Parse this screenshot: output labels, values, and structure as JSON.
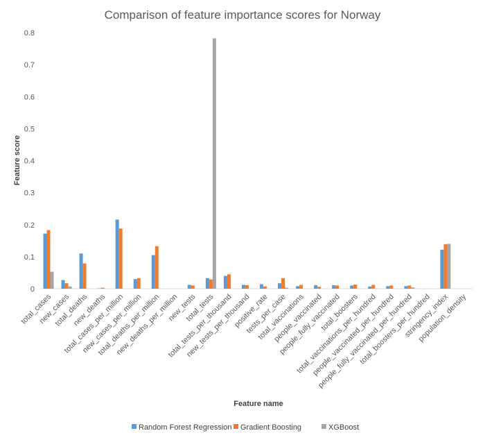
{
  "chart_data": {
    "type": "bar",
    "title": "Comparison of feature importance scores for Norway",
    "xlabel": "Feature name",
    "ylabel": "Feature score",
    "ylim": [
      0,
      0.8
    ],
    "yticks": [
      "0",
      "0.1",
      "0.2",
      "0.3",
      "0.4",
      "0.5",
      "0.6",
      "0.7",
      "0.8"
    ],
    "grid": false,
    "legend_position": "bottom",
    "categories": [
      "total_cases",
      "new_cases",
      "total_deaths",
      "new_deaths",
      "total_cases_per_million",
      "new_cases_per_million",
      "total_deaths_per_million",
      "new_deaths_per_million",
      "new_tests",
      "total_tests",
      "total_tests_per_thousand",
      "new_tests_per_thousand",
      "positive_rate",
      "tests_per_case",
      "total_vaccinations",
      "people_vaccinated",
      "people_fully_vaccinated",
      "total_boosters",
      "total_vaccinations_per_hundred",
      "people_vaccinated_per_hundred",
      "people_fully_vaccinated_per_hundred",
      "total_boosters_per_hundred",
      "stringency_index",
      "population_density"
    ],
    "series": [
      {
        "name": "Random Forest Regression",
        "color": "#5B9BD5",
        "values": [
          0.172,
          0.027,
          0.11,
          0.001,
          0.216,
          0.03,
          0.105,
          0.0,
          0.012,
          0.033,
          0.04,
          0.012,
          0.014,
          0.017,
          0.008,
          0.011,
          0.011,
          0.01,
          0.007,
          0.008,
          0.008,
          0.0,
          0.122,
          0.0
        ]
      },
      {
        "name": "Gradient Boosting",
        "color": "#ED7D31",
        "values": [
          0.183,
          0.017,
          0.079,
          0.003,
          0.188,
          0.033,
          0.133,
          0.0,
          0.01,
          0.029,
          0.045,
          0.011,
          0.007,
          0.033,
          0.012,
          0.006,
          0.01,
          0.013,
          0.012,
          0.01,
          0.01,
          0.0,
          0.139,
          0.0
        ]
      },
      {
        "name": "XGBoost",
        "color": "#A5A5A5",
        "values": [
          0.053,
          0.007,
          0.0,
          0.0,
          0.0,
          0.0,
          0.0,
          0.0,
          0.0,
          0.782,
          0.0,
          0.0,
          0.0,
          0.003,
          0.0,
          0.0,
          0.0,
          0.0,
          0.0,
          0.0,
          0.004,
          0.0,
          0.14,
          0.0
        ]
      }
    ]
  }
}
